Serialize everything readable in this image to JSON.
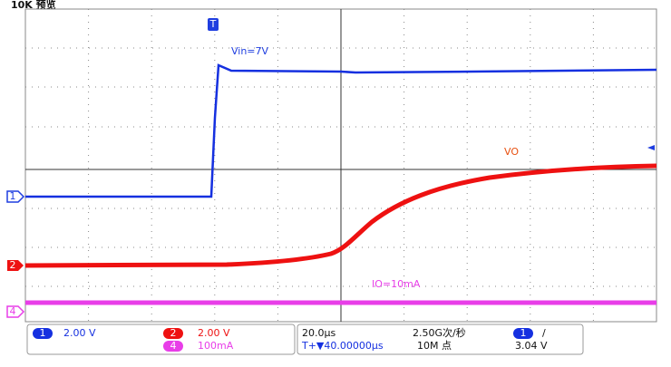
{
  "header": {
    "title": "10K 预览"
  },
  "annotations": {
    "vin": "Vin=7V",
    "vo": "VO",
    "io": "IO=10mA"
  },
  "markers": {
    "trigger": "T",
    "ch1": "1",
    "ch2": "2",
    "ch4": "4"
  },
  "status": {
    "ch1": {
      "badge": "1",
      "scale": "2.00 V"
    },
    "ch2": {
      "badge": "2",
      "scale": "2.00 V"
    },
    "ch4": {
      "badge": "4",
      "scale": "100mA"
    },
    "timebase": "20.0µs",
    "sample_rate": "2.50G次/秒",
    "delay": "T+▼40.00000µs",
    "memory": "10M 点",
    "trigger": {
      "badge": "1",
      "slope": "/",
      "level": "3.04 V"
    }
  }
}
